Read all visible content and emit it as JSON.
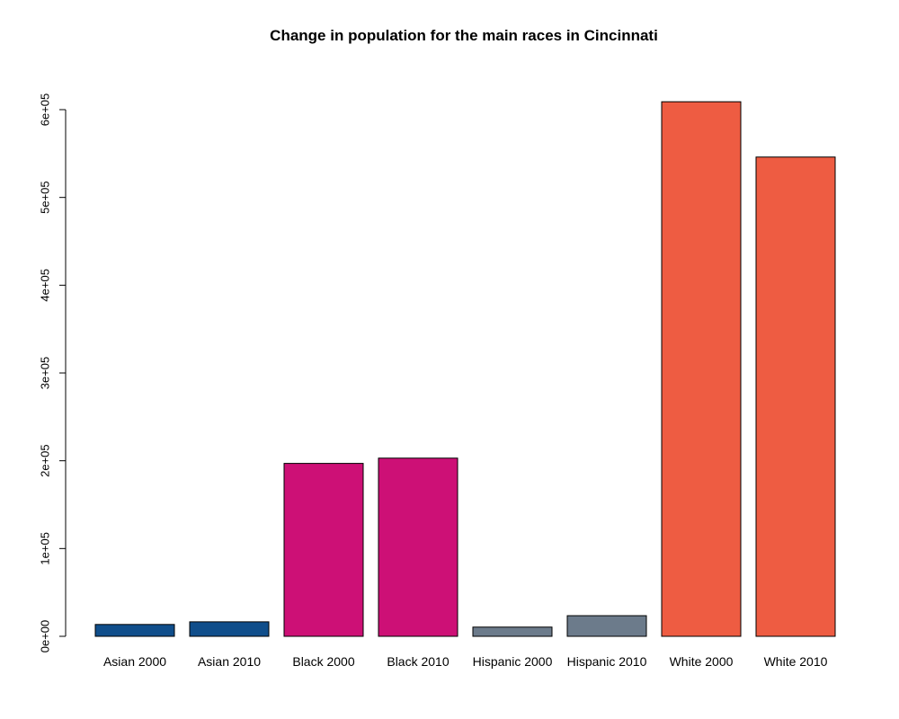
{
  "chart_data": {
    "type": "bar",
    "title": "Change in population for the main races in Cincinnati",
    "xlabel": "",
    "ylabel": "",
    "categories": [
      "Asian 2000",
      "Asian 2010",
      "Black 2000",
      "Black 2010",
      "Hispanic 2000",
      "Hispanic 2010",
      "White 2000",
      "White 2010"
    ],
    "values": [
      13500,
      16500,
      197000,
      203000,
      10500,
      23500,
      609000,
      546000
    ],
    "colors": [
      "#104e8b",
      "#104e8b",
      "#cd1076",
      "#cd1076",
      "#6c7b8b",
      "#6c7b8b",
      "#ee5c42",
      "#ee5c42"
    ],
    "ylim": [
      0,
      600000
    ],
    "y_ticks": [
      {
        "value": 0,
        "label": "0e+00"
      },
      {
        "value": 100000,
        "label": "1e+05"
      },
      {
        "value": 200000,
        "label": "2e+05"
      },
      {
        "value": 300000,
        "label": "3e+05"
      },
      {
        "value": 400000,
        "label": "4e+05"
      },
      {
        "value": 500000,
        "label": "5e+05"
      },
      {
        "value": 600000,
        "label": "6e+05"
      }
    ],
    "grid": false,
    "legend": "none"
  }
}
